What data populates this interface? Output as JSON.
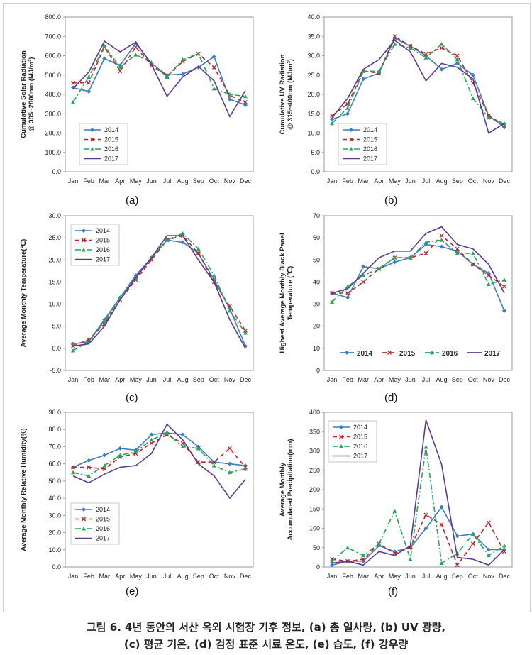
{
  "caption": {
    "line1": "그림 6. 4년 동안의 서산 옥외 시험장 기후 정보, (a) 총 일사량, (b) UV 광량,",
    "line2": "(c) 평균 기온, (d) 검정 표준 시료 온도, (e) 습도, (f) 강우량"
  },
  "series_styles": {
    "2014": {
      "color": "#3a7fc1",
      "dash": "none",
      "marker": "diamond"
    },
    "2015": {
      "color": "#c0242b",
      "dash": "6,4",
      "marker": "x"
    },
    "2016": {
      "color": "#29a35a",
      "dash": "8,3,2,3",
      "marker": "triangle"
    },
    "2017": {
      "color": "#5b3a8e",
      "dash": "none",
      "marker": "none"
    }
  },
  "chart_data": [
    {
      "id": "a",
      "panel_label": "(a)",
      "type": "line",
      "ylabel_lines": [
        "Cumulative Solar Radiation",
        "@ 305~2800nm (MJ/m²)"
      ],
      "categories": [
        "Jan",
        "Feb",
        "Mar",
        "Apr",
        "May",
        "Jun",
        "Jul",
        "Aug",
        "Sep",
        "Oct",
        "Nov",
        "Dec"
      ],
      "ylim": [
        0,
        800
      ],
      "ystep": 100,
      "ydecimals": 1,
      "legend": {
        "position": "bottom-left",
        "orientation": "vertical"
      },
      "series": [
        {
          "name": "2014",
          "values": [
            435,
            415,
            585,
            550,
            665,
            560,
            500,
            505,
            540,
            595,
            375,
            345
          ]
        },
        {
          "name": "2015",
          "values": [
            460,
            460,
            645,
            520,
            645,
            550,
            495,
            570,
            610,
            540,
            395,
            360
          ]
        },
        {
          "name": "2016",
          "values": [
            360,
            490,
            650,
            540,
            605,
            565,
            490,
            580,
            610,
            430,
            400,
            390
          ]
        },
        {
          "name": "2017",
          "values": [
            430,
            515,
            675,
            620,
            670,
            555,
            390,
            490,
            545,
            470,
            285,
            420
          ]
        }
      ]
    },
    {
      "id": "b",
      "panel_label": "(b)",
      "type": "line",
      "ylabel_lines": [
        "Cumulative UV Radiation",
        "@ 315~400nm (MJ/m²)"
      ],
      "categories": [
        "Jan",
        "Feb",
        "Mar",
        "Apr",
        "May",
        "Jun",
        "Jul",
        "Aug",
        "Sep",
        "Oct",
        "Nov",
        "Dec"
      ],
      "ylim": [
        0,
        40
      ],
      "ystep": 5,
      "ydecimals": 1,
      "legend": {
        "position": "bottom-left",
        "orientation": "vertical"
      },
      "series": [
        {
          "name": "2014",
          "values": [
            13.5,
            15.0,
            24.0,
            25.5,
            34.5,
            32.5,
            30.0,
            26.5,
            28.0,
            25.0,
            14.5,
            11.5
          ]
        },
        {
          "name": "2015",
          "values": [
            14.5,
            17.5,
            26.0,
            25.5,
            35.0,
            32.5,
            30.5,
            32.0,
            30.0,
            23.0,
            14.5,
            12.0
          ]
        },
        {
          "name": "2016",
          "values": [
            12.5,
            16.5,
            26.0,
            26.0,
            33.0,
            32.0,
            29.5,
            33.0,
            29.0,
            19.0,
            14.0,
            12.5
          ]
        },
        {
          "name": "2017",
          "values": [
            14.0,
            19.0,
            26.5,
            29.0,
            34.0,
            31.0,
            23.5,
            28.0,
            27.0,
            24.0,
            10.0,
            12.5
          ]
        }
      ]
    },
    {
      "id": "c",
      "panel_label": "(c)",
      "type": "line",
      "ylabel_lines": [
        "Average Monthly Temperature(℃)"
      ],
      "categories": [
        "Jan",
        "Feb",
        "Mar",
        "Apr",
        "May",
        "Jun",
        "Jul",
        "Aug",
        "Sep",
        "Oct",
        "Nov",
        "Dec"
      ],
      "ylim": [
        -5,
        30
      ],
      "ystep": 5,
      "ydecimals": 1,
      "legend": {
        "position": "top-left",
        "orientation": "vertical"
      },
      "series": [
        {
          "name": "2014",
          "values": [
            1.0,
            1.5,
            6.5,
            11.5,
            16.5,
            20.5,
            24.5,
            24.0,
            21.5,
            15.5,
            9.0,
            0.5
          ]
        },
        {
          "name": "2015",
          "values": [
            0.5,
            2.0,
            5.5,
            11.0,
            15.5,
            20.0,
            24.5,
            25.5,
            21.5,
            15.0,
            9.5,
            4.0
          ]
        },
        {
          "name": "2016",
          "values": [
            -0.5,
            1.5,
            6.0,
            11.5,
            16.0,
            20.5,
            24.5,
            26.0,
            22.5,
            16.5,
            8.5,
            3.5
          ]
        },
        {
          "name": "2017",
          "values": [
            0.5,
            1.0,
            5.0,
            11.0,
            16.0,
            20.5,
            25.5,
            25.5,
            20.0,
            15.0,
            6.5,
            0.0
          ]
        }
      ]
    },
    {
      "id": "d",
      "panel_label": "(d)",
      "type": "line",
      "ylabel_lines": [
        "Highest Average Monthly Black Panel",
        "Temperature (℃)"
      ],
      "categories": [
        "Jan",
        "Feb",
        "Mar",
        "Apr",
        "May",
        "Jun",
        "Jul",
        "Aug",
        "Sep",
        "Oct",
        "Nov",
        "Dec"
      ],
      "ylim": [
        0,
        70
      ],
      "ystep": 10,
      "ydecimals": 0,
      "legend": {
        "position": "bottom",
        "orientation": "horizontal"
      },
      "series": [
        {
          "name": "2014",
          "values": [
            35,
            33,
            47,
            46,
            49,
            51,
            57,
            56,
            54,
            48,
            44,
            27
          ]
        },
        {
          "name": "2015",
          "values": [
            35,
            35,
            40,
            46,
            51,
            51,
            53,
            61,
            55,
            48,
            43,
            38
          ]
        },
        {
          "name": "2016",
          "values": [
            31,
            38,
            43,
            46,
            51,
            51,
            58,
            59,
            53,
            53,
            39,
            41
          ]
        },
        {
          "name": "2017",
          "values": [
            35,
            37,
            44,
            51,
            54,
            54,
            62,
            65,
            57,
            55,
            48,
            35
          ]
        }
      ]
    },
    {
      "id": "e",
      "panel_label": "(e)",
      "type": "line",
      "ylabel_lines": [
        "Average Monthly Relative Humidity(%)"
      ],
      "categories": [
        "Jan",
        "Feb",
        "Mar",
        "Apr",
        "May",
        "Jun",
        "Jul",
        "Aug",
        "Sep",
        "Oct",
        "Nov",
        "Dec"
      ],
      "ylim": [
        0,
        90
      ],
      "ystep": 10,
      "ydecimals": 1,
      "legend": {
        "position": "bottom-left",
        "orientation": "vertical"
      },
      "series": [
        {
          "name": "2014",
          "values": [
            58,
            62,
            65,
            69,
            68,
            77,
            78,
            77,
            70,
            61,
            60,
            59
          ]
        },
        {
          "name": "2015",
          "values": [
            58,
            58,
            57,
            64,
            66,
            72,
            77,
            72,
            61,
            61,
            69,
            58
          ]
        },
        {
          "name": "2016",
          "values": [
            55,
            53,
            59,
            65,
            67,
            74,
            78,
            70,
            69,
            59,
            55,
            57
          ]
        },
        {
          "name": "2017",
          "values": [
            53,
            49,
            54,
            58,
            59,
            66,
            83,
            74,
            60,
            53,
            40,
            51
          ]
        }
      ]
    },
    {
      "id": "f",
      "panel_label": "(f)",
      "type": "line",
      "ylabel_lines": [
        "Average Monthly",
        "Accumulated Precipitation(mm)"
      ],
      "categories": [
        "Jan",
        "Feb",
        "Mar",
        "Apr",
        "May",
        "Jun",
        "Jul",
        "Aug",
        "Sep",
        "Oct",
        "Nov",
        "Dec"
      ],
      "ylim": [
        0,
        400
      ],
      "ystep": 50,
      "ydecimals": 0,
      "legend": {
        "position": "top-left",
        "orientation": "vertical"
      },
      "series": [
        {
          "name": "2014",
          "values": [
            5,
            15,
            15,
            55,
            40,
            50,
            100,
            155,
            80,
            85,
            45,
            45
          ]
        },
        {
          "name": "2015",
          "values": [
            20,
            15,
            20,
            60,
            35,
            50,
            135,
            110,
            5,
            60,
            115,
            40
          ]
        },
        {
          "name": "2016",
          "values": [
            15,
            50,
            30,
            60,
            145,
            20,
            310,
            10,
            35,
            85,
            30,
            55
          ]
        },
        {
          "name": "2017",
          "values": [
            10,
            15,
            5,
            40,
            30,
            55,
            380,
            265,
            25,
            20,
            5,
            45
          ]
        }
      ]
    }
  ]
}
